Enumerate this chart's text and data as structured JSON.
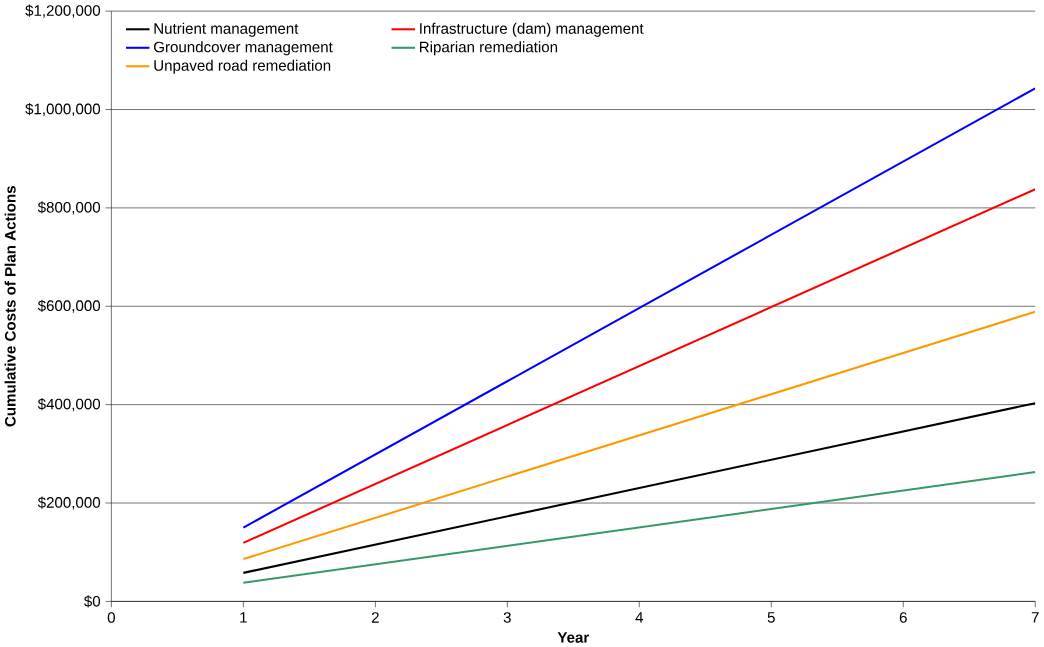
{
  "chart_data": {
    "type": "line",
    "xlabel": "Year",
    "ylabel": "Cumulative Costs of Plan Actions",
    "xlim": [
      0,
      7
    ],
    "xticks": [
      0,
      1,
      2,
      3,
      4,
      5,
      6,
      7
    ],
    "ylim": [
      0,
      1200000
    ],
    "yticks": [
      {
        "value": 0,
        "label": "$0"
      },
      {
        "value": 200000,
        "label": "$200,000"
      },
      {
        "value": 400000,
        "label": "$400,000"
      },
      {
        "value": 600000,
        "label": "$600,000"
      },
      {
        "value": 800000,
        "label": "$800,000"
      },
      {
        "value": 1000000,
        "label": "$1,000,000"
      },
      {
        "value": 1200000,
        "label": "$1,200,000"
      }
    ],
    "grid": "y",
    "legend": "top left",
    "marker": "none",
    "line_style": "solid",
    "x": [
      1,
      7
    ],
    "series": [
      {
        "name": "Nutrient management",
        "color": "#000000",
        "values": [
          58000,
          403000
        ]
      },
      {
        "name": "Infrastructure (dam) management",
        "color": "#ff0000",
        "values": [
          119000,
          838000
        ]
      },
      {
        "name": "Groundcover management",
        "color": "#0000ff",
        "values": [
          150000,
          1043000
        ]
      },
      {
        "name": "Riparian remediation",
        "color": "#339966",
        "values": [
          38000,
          263000
        ]
      },
      {
        "name": "Unpaved road remediation",
        "color": "#ff9900",
        "values": [
          86000,
          589000
        ]
      }
    ]
  }
}
